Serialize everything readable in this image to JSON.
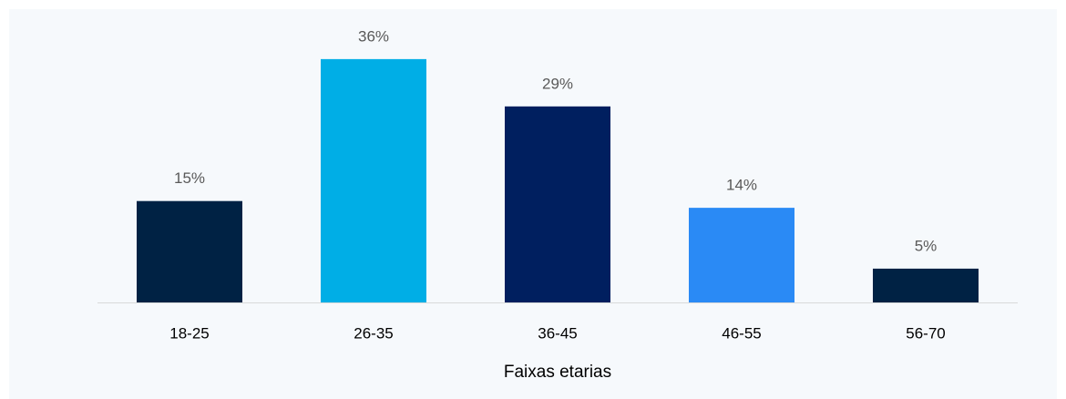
{
  "chart_data": {
    "type": "bar",
    "xlabel": "Faixas etarias",
    "categories": [
      "18-25",
      "26-35",
      "36-45",
      "46-55",
      "56-70"
    ],
    "values": [
      15,
      36,
      29,
      14,
      5
    ],
    "value_labels": [
      "15%",
      "36%",
      "29%",
      "14%",
      "5%"
    ],
    "colors": [
      "#002244",
      "#00aee6",
      "#001f5f",
      "#2a8af5",
      "#002244"
    ]
  }
}
